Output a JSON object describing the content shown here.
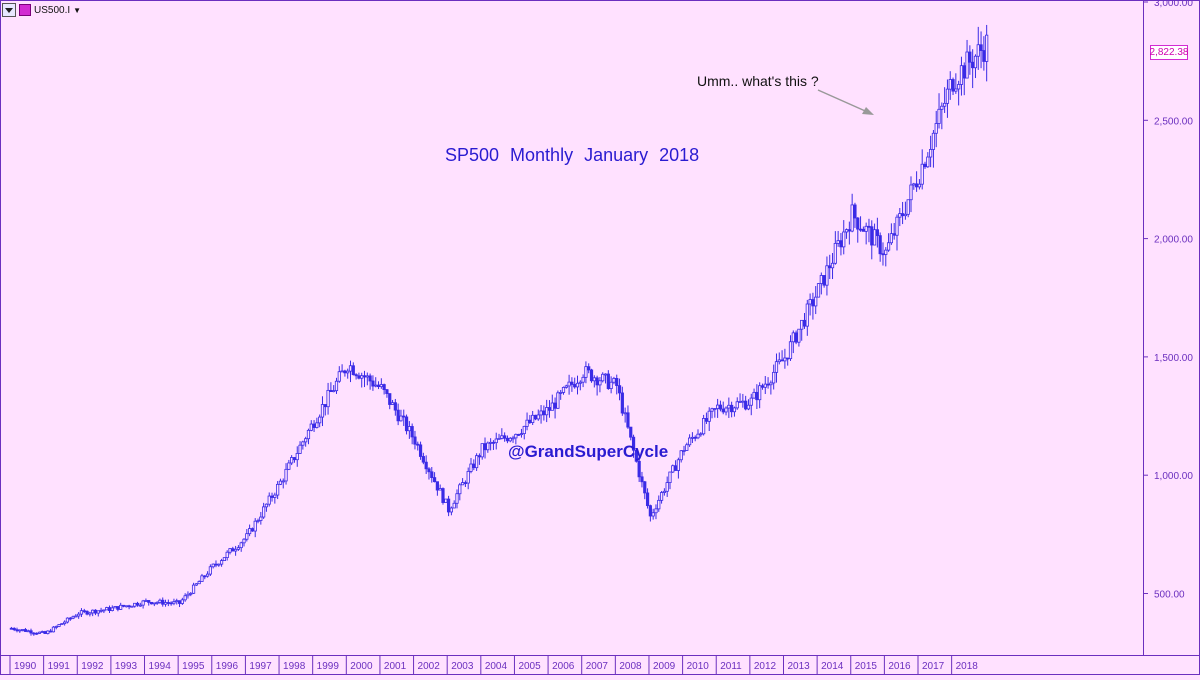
{
  "toolbar": {
    "symbol": "US500.I",
    "symbol_icon": "chart-symbol-icon",
    "menu_icon": "dropdown-menu-icon"
  },
  "title": "SP500  Monthly  January  2018",
  "annotation": "Umm.. what's this ?",
  "watermark": "@GrandSuperCycle",
  "last_price_label": "2,822.38",
  "colors": {
    "background": "#ffe1ff",
    "candle": "#3a2be6",
    "axis": "#6b2fbf",
    "text": "#2a1bd1",
    "price_box": "#d22bd2"
  },
  "chart_data": {
    "type": "candlestick",
    "title": "SP500  Monthly  January  2018",
    "xlabel": "",
    "ylabel": "",
    "ylim": [
      240,
      3000
    ],
    "yticks": [
      "500.00",
      "1,000.00",
      "1,500.00",
      "2,000.00",
      "2,500.00",
      "3,000.00"
    ],
    "ytick_values": [
      500,
      1000,
      1500,
      2000,
      2500,
      3000
    ],
    "xticks": [
      "1990",
      "1991",
      "1992",
      "1993",
      "1994",
      "1995",
      "1996",
      "1997",
      "1998",
      "1999",
      "2000",
      "2001",
      "2002",
      "2003",
      "2004",
      "2005",
      "2006",
      "2007",
      "2008",
      "2009",
      "2010",
      "2011",
      "2012",
      "2013",
      "2014",
      "2015",
      "2016",
      "2017",
      "2018"
    ],
    "year_anchor_values": [
      353,
      330,
      417,
      436,
      466,
      459,
      615,
      740,
      970,
      1229,
      1469,
      1366,
      1148,
      855,
      1111,
      1181,
      1280,
      1438,
      1378,
      825,
      1115,
      1286,
      1312,
      1498,
      1782,
      2104,
      1940,
      2279,
      2674,
      2822
    ],
    "last_price": 2822.38,
    "grid": false,
    "legend": "none"
  }
}
